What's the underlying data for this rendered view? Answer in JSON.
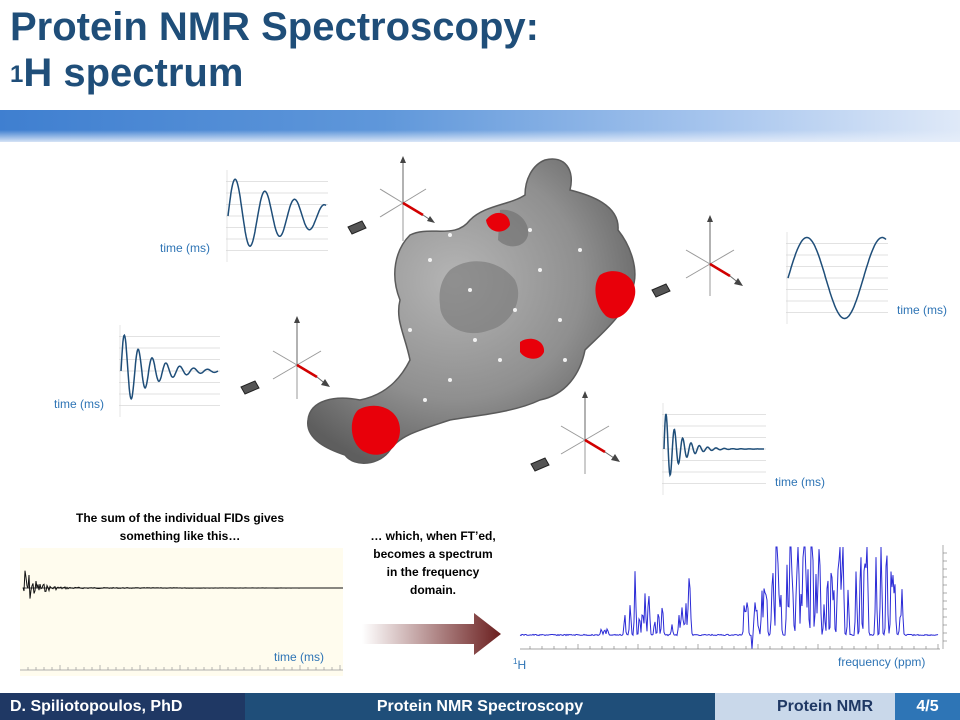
{
  "slide": {
    "title_line1": "Protein NMR Spectroscopy:",
    "title_sup": "1",
    "title_line2": "H spectrum"
  },
  "fid_labels": {
    "top_left": "time (ms)",
    "right": "time (ms)",
    "mid_left": "time (ms)",
    "bottom_right": "time (ms)",
    "sum": "time (ms)"
  },
  "text": {
    "sum_caption": "The sum of the individual FIDs gives something like this…",
    "ft_caption": "… which, when FT’ed, becomes a spectrum in the frequency domain."
  },
  "spectrum": {
    "nucleus_sup": "1",
    "nucleus_label": "H",
    "x_label": "frequency (ppm)"
  },
  "footer": {
    "author": "D. Spiliotopoulos,  PhD",
    "course": "Protein NMR Spectroscopy",
    "section": "Protein NMR",
    "page": "4/5"
  },
  "colors": {
    "title": "#1f4e79",
    "label": "#2e74b5",
    "trace": "#1f4e79",
    "spectrum": "#2b2bd6",
    "protein": "#8c8c8c",
    "highlight": "#e8000a"
  }
}
